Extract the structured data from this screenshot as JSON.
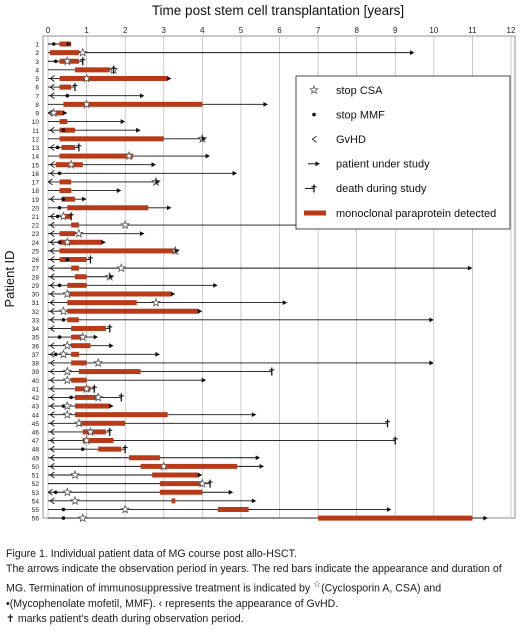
{
  "chart_data": {
    "type": "timeline",
    "title": "Time post stem cell transplantation [years]",
    "ylabel": "Patient ID",
    "xlim": [
      0,
      12
    ],
    "x_ticks": [
      0,
      1,
      2,
      3,
      4,
      5,
      6,
      7,
      8,
      9,
      10,
      11,
      12
    ],
    "grid": true,
    "legend_position": "top-right",
    "legend": [
      {
        "marker": "star",
        "label": "stop CSA"
      },
      {
        "marker": "dot",
        "label": "stop MMF"
      },
      {
        "marker": "chevron",
        "label": "GvHD"
      },
      {
        "marker": "arrow",
        "label": "patient under study"
      },
      {
        "marker": "cross",
        "label": "death during study"
      },
      {
        "marker": "bar",
        "label": "monoclonal paraprotein detected"
      }
    ],
    "colors": {
      "bar": "#b83a18",
      "line": "#111111",
      "grid": "#b5b5b5"
    },
    "patients": [
      {
        "id": 1,
        "end": 0.6,
        "outcome": "arrow",
        "mg": [
          [
            0.3,
            0.6
          ]
        ],
        "csa": null,
        "mmf": 0.15,
        "gvhd": null
      },
      {
        "id": 2,
        "end": 9.5,
        "outcome": "arrow",
        "mg": [
          [
            0.05,
            0.8
          ]
        ],
        "csa": 0.9,
        "mmf": null,
        "gvhd": null
      },
      {
        "id": 3,
        "end": 0.9,
        "outcome": "cross",
        "mg": [
          [
            0.3,
            0.8
          ]
        ],
        "csa": 0.5,
        "mmf": 0.2,
        "gvhd": null
      },
      {
        "id": 4,
        "end": 1.7,
        "outcome": "cross",
        "mg": [
          [
            0.7,
            1.6
          ]
        ],
        "csa": 1.7,
        "mmf": null,
        "gvhd": null
      },
      {
        "id": 5,
        "end": 3.2,
        "outcome": "arrow",
        "mg": [
          [
            0.3,
            3.1
          ]
        ],
        "csa": 1.0,
        "mmf": null,
        "gvhd": 0.1
      },
      {
        "id": 6,
        "end": 0.7,
        "outcome": "cross",
        "mg": [
          [
            0.3,
            0.6
          ]
        ],
        "csa": null,
        "mmf": null,
        "gvhd": 0.1
      },
      {
        "id": 7,
        "end": 2.5,
        "outcome": "arrow",
        "mg": [],
        "csa": null,
        "mmf": 0.5,
        "gvhd": 0.1
      },
      {
        "id": 8,
        "end": 5.7,
        "outcome": "arrow",
        "mg": [
          [
            0.4,
            4.0
          ]
        ],
        "csa": 1.0,
        "mmf": null,
        "gvhd": null
      },
      {
        "id": 9,
        "end": 0.5,
        "outcome": "arrow",
        "mg": [
          [
            0.2,
            0.4
          ]
        ],
        "csa": 0.15,
        "mmf": null,
        "gvhd": 0.05
      },
      {
        "id": 10,
        "end": 2.0,
        "outcome": "arrow",
        "mg": [
          [
            0.3,
            0.5
          ]
        ],
        "csa": null,
        "mmf": null,
        "gvhd": null
      },
      {
        "id": 11,
        "end": 2.4,
        "outcome": "arrow",
        "mg": [
          [
            0.3,
            0.7
          ]
        ],
        "csa": null,
        "mmf": 0.4,
        "gvhd": 0.1
      },
      {
        "id": 12,
        "end": 4.1,
        "outcome": "arrow",
        "mg": [
          [
            0.3,
            3.0
          ]
        ],
        "csa": 4.0,
        "mmf": null,
        "gvhd": null
      },
      {
        "id": 13,
        "end": 0.8,
        "outcome": "cross",
        "mg": [
          [
            0.35,
            0.7
          ]
        ],
        "csa": null,
        "mmf": 0.25,
        "gvhd": 0.1
      },
      {
        "id": 14,
        "end": 4.2,
        "outcome": "arrow",
        "mg": [
          [
            0.3,
            2.2
          ]
        ],
        "csa": 2.1,
        "mmf": null,
        "gvhd": null
      },
      {
        "id": 15,
        "end": 2.8,
        "outcome": "arrow",
        "mg": [
          [
            0.2,
            0.9
          ]
        ],
        "csa": 0.6,
        "mmf": null,
        "gvhd": 0.1
      },
      {
        "id": 16,
        "end": 4.9,
        "outcome": "arrow",
        "mg": [],
        "csa": null,
        "mmf": 0.3,
        "gvhd": 0.1
      },
      {
        "id": 17,
        "end": 2.9,
        "outcome": "arrow",
        "mg": [
          [
            0.3,
            0.6
          ]
        ],
        "csa": 2.8,
        "mmf": null,
        "gvhd": 0.05
      },
      {
        "id": 18,
        "end": 1.9,
        "outcome": "arrow",
        "mg": [
          [
            0.3,
            0.6
          ]
        ],
        "csa": null,
        "mmf": null,
        "gvhd": null
      },
      {
        "id": 19,
        "end": 1.0,
        "outcome": "arrow",
        "mg": [
          [
            0.35,
            0.7
          ]
        ],
        "csa": null,
        "mmf": 0.4,
        "gvhd": 0.1
      },
      {
        "id": 20,
        "end": 3.2,
        "outcome": "arrow",
        "mg": [
          [
            0.5,
            2.6
          ]
        ],
        "csa": null,
        "mmf": 0.3,
        "gvhd": null
      },
      {
        "id": 21,
        "end": 0.6,
        "outcome": "cross",
        "mg": [
          [
            0.4,
            0.6
          ]
        ],
        "csa": 0.4,
        "mmf": 0.25,
        "gvhd": 0.1
      },
      {
        "id": 22,
        "end": 8.6,
        "outcome": "arrow",
        "mg": [
          [
            0.6,
            0.8
          ]
        ],
        "csa": 2.0,
        "mmf": null,
        "gvhd": 0.1
      },
      {
        "id": 23,
        "end": 2.5,
        "outcome": "arrow",
        "mg": [
          [
            0.3,
            0.7
          ]
        ],
        "csa": 0.8,
        "mmf": null,
        "gvhd": 0.1
      },
      {
        "id": 24,
        "end": 1.5,
        "outcome": "arrow",
        "mg": [
          [
            0.3,
            1.4
          ]
        ],
        "csa": 0.5,
        "mmf": 0.3,
        "gvhd": 0.1
      },
      {
        "id": 25,
        "end": 3.4,
        "outcome": "arrow",
        "mg": [
          [
            0.3,
            3.3
          ]
        ],
        "csa": 3.3,
        "mmf": null,
        "gvhd": 0.1
      },
      {
        "id": 26,
        "end": 1.1,
        "outcome": "cross",
        "mg": [
          [
            0.3,
            1.0
          ]
        ],
        "csa": null,
        "mmf": 0.5,
        "gvhd": 0.1
      },
      {
        "id": 27,
        "end": 11.0,
        "outcome": "arrow",
        "mg": [
          [
            0.6,
            0.8
          ]
        ],
        "csa": 1.9,
        "mmf": null,
        "gvhd": 0.1
      },
      {
        "id": 28,
        "end": 1.7,
        "outcome": "arrow",
        "mg": [
          [
            0.7,
            1.0
          ]
        ],
        "csa": 1.6,
        "mmf": null,
        "gvhd": 0.1
      },
      {
        "id": 29,
        "end": 4.4,
        "outcome": "arrow",
        "mg": [
          [
            0.5,
            1.0
          ]
        ],
        "csa": null,
        "mmf": 0.3,
        "gvhd": 0.1
      },
      {
        "id": 30,
        "end": 3.3,
        "outcome": "arrow",
        "mg": [
          [
            0.5,
            3.2
          ]
        ],
        "csa": 0.5,
        "mmf": null,
        "gvhd": 0.1
      },
      {
        "id": 31,
        "end": 6.2,
        "outcome": "arrow",
        "mg": [
          [
            0.5,
            2.3
          ]
        ],
        "csa": 2.8,
        "mmf": null,
        "gvhd": 0.1
      },
      {
        "id": 32,
        "end": 4.0,
        "outcome": "arrow",
        "mg": [
          [
            0.5,
            3.9
          ]
        ],
        "csa": 0.4,
        "mmf": null,
        "gvhd": 0.1
      },
      {
        "id": 33,
        "end": 10.0,
        "outcome": "arrow",
        "mg": [
          [
            0.5,
            0.8
          ]
        ],
        "csa": null,
        "mmf": 0.4,
        "gvhd": 0.1
      },
      {
        "id": 34,
        "end": 1.6,
        "outcome": "cross",
        "mg": [
          [
            0.6,
            1.5
          ]
        ],
        "csa": null,
        "mmf": null,
        "gvhd": 0.1
      },
      {
        "id": 35,
        "end": 1.3,
        "outcome": "arrow",
        "mg": [
          [
            0.6,
            0.9
          ]
        ],
        "csa": 0.9,
        "mmf": 0.3,
        "gvhd": null
      },
      {
        "id": 36,
        "end": 1.7,
        "outcome": "arrow",
        "mg": [
          [
            0.6,
            1.1
          ]
        ],
        "csa": 0.5,
        "mmf": null,
        "gvhd": 0.1
      },
      {
        "id": 37,
        "end": 2.9,
        "outcome": "arrow",
        "mg": [
          [
            0.6,
            0.8
          ]
        ],
        "csa": 0.4,
        "mmf": 0.2,
        "gvhd": 0.1
      },
      {
        "id": 38,
        "end": 10.0,
        "outcome": "arrow",
        "mg": [
          [
            0.6,
            1.0
          ]
        ],
        "csa": 1.3,
        "mmf": null,
        "gvhd": 0.1
      },
      {
        "id": 39,
        "end": 5.8,
        "outcome": "cross",
        "mg": [
          [
            0.8,
            2.4
          ]
        ],
        "csa": 0.5,
        "mmf": null,
        "gvhd": 0.1
      },
      {
        "id": 40,
        "end": 4.1,
        "outcome": "arrow",
        "mg": [
          [
            0.6,
            1.0
          ]
        ],
        "csa": 0.5,
        "mmf": null,
        "gvhd": 0.1
      },
      {
        "id": 41,
        "end": 1.2,
        "outcome": "cross",
        "mg": [
          [
            0.7,
            1.1
          ]
        ],
        "csa": 1.0,
        "mmf": null,
        "gvhd": 0.1
      },
      {
        "id": 42,
        "end": 1.9,
        "outcome": "cross",
        "mg": [
          [
            0.7,
            1.3
          ]
        ],
        "csa": 1.3,
        "mmf": 0.6,
        "gvhd": 0.1
      },
      {
        "id": 43,
        "end": 1.7,
        "outcome": "arrow",
        "mg": [
          [
            0.7,
            1.6
          ]
        ],
        "csa": 0.5,
        "mmf": 0.4,
        "gvhd": 0.1
      },
      {
        "id": 44,
        "end": 5.4,
        "outcome": "arrow",
        "mg": [
          [
            0.7,
            3.1
          ]
        ],
        "csa": 0.5,
        "mmf": null,
        "gvhd": 0.1
      },
      {
        "id": 45,
        "end": 8.8,
        "outcome": "cross",
        "mg": [
          [
            0.8,
            2.0
          ]
        ],
        "csa": 0.8,
        "mmf": null,
        "gvhd": 0.1
      },
      {
        "id": 46,
        "end": 1.6,
        "outcome": "cross",
        "mg": [
          [
            0.9,
            1.5
          ]
        ],
        "csa": 1.1,
        "mmf": null,
        "gvhd": 0.1
      },
      {
        "id": 47,
        "end": 9.0,
        "outcome": "cross",
        "mg": [
          [
            0.9,
            1.7
          ]
        ],
        "csa": 1.0,
        "mmf": null,
        "gvhd": 0.1
      },
      {
        "id": 48,
        "end": 2.0,
        "outcome": "cross",
        "mg": [
          [
            1.3,
            1.9
          ]
        ],
        "csa": null,
        "mmf": 0.9,
        "gvhd": 0.1
      },
      {
        "id": 49,
        "end": 5.5,
        "outcome": "arrow",
        "mg": [
          [
            2.1,
            2.9
          ]
        ],
        "csa": null,
        "mmf": null,
        "gvhd": 0.1
      },
      {
        "id": 50,
        "end": 5.6,
        "outcome": "arrow",
        "mg": [
          [
            2.4,
            4.9
          ]
        ],
        "csa": 3.0,
        "mmf": null,
        "gvhd": 0.1
      },
      {
        "id": 51,
        "end": 4.0,
        "outcome": "arrow",
        "mg": [
          [
            2.7,
            3.9
          ]
        ],
        "csa": 0.7,
        "mmf": null,
        "gvhd": 0.1
      },
      {
        "id": 52,
        "end": 4.2,
        "outcome": "cross",
        "mg": [
          [
            2.9,
            4.0
          ]
        ],
        "csa": 4.0,
        "mmf": null,
        "gvhd": null
      },
      {
        "id": 53,
        "end": 4.8,
        "outcome": "arrow",
        "mg": [
          [
            2.9,
            4.0
          ]
        ],
        "csa": 0.5,
        "mmf": 0.2,
        "gvhd": 0.05
      },
      {
        "id": 54,
        "end": 5.4,
        "outcome": "arrow",
        "mg": [
          [
            3.2,
            3.3
          ]
        ],
        "csa": 0.7,
        "mmf": null,
        "gvhd": 0.1
      },
      {
        "id": 55,
        "end": 8.9,
        "outcome": "arrow",
        "mg": [
          [
            4.4,
            5.2
          ]
        ],
        "csa": 2.0,
        "mmf": 0.4,
        "gvhd": null
      },
      {
        "id": 56,
        "end": 11.4,
        "outcome": "arrow",
        "mg": [
          [
            7.0,
            11.0
          ]
        ],
        "csa": 0.9,
        "mmf": 0.4,
        "gvhd": null
      }
    ]
  },
  "caption": {
    "title": "Figure 1. Individual patient data of MG course post allo-HSCT.",
    "text1": "The arrows indicate the observation period in years. The red bars indicate the appearance and duration of MG. Termination of immunosuppressive treatment is indicated by ",
    "csa_symbol": "☆",
    "text2": "(Cyclosporin A, CSA) and ",
    "mmf_symbol": "•",
    "text3": "(Mycophenolate mofetil, MMF). ",
    "gvhd_symbol": "‹",
    "text4": " represents the appearance of GvHD.",
    "cross_symbol": "✝",
    "text5": " marks patient's death during observation period."
  }
}
